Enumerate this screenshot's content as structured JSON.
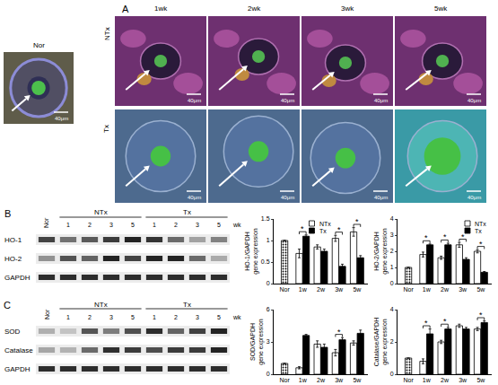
{
  "figure": {
    "panel_a": {
      "label": "A",
      "normal": "Nor",
      "columns": [
        "1wk",
        "2wk",
        "3wk",
        "5wk"
      ],
      "rows": [
        "NTx",
        "Tx"
      ],
      "scale_bar": "40μm"
    },
    "blots": [
      {
        "label": "B",
        "first_lane": "Nor",
        "groups": [
          "NTx",
          "Tx"
        ],
        "lanes": [
          "1",
          "2",
          "3",
          "5"
        ],
        "unit": "wk",
        "rows": [
          "HO-1",
          "HO-2",
          "GAPDH"
        ]
      },
      {
        "label": "C",
        "first_lane": "Nor",
        "groups": [
          "NTx",
          "Tx"
        ],
        "lanes": [
          "1",
          "2",
          "3",
          "5"
        ],
        "unit": "wk",
        "rows": [
          "SOD",
          "Catalase",
          "GAPDH"
        ]
      }
    ]
  },
  "chart_data": [
    {
      "type": "bar",
      "y_label": "HO-1/GAPDH\ngene expression",
      "categories": [
        "Nor",
        "1w",
        "2w",
        "3w",
        "5w"
      ],
      "series": [
        {
          "name": "NTx",
          "color": "#ffffff",
          "values": [
            1.0,
            0.7,
            0.85,
            1.05,
            1.2
          ],
          "errors": [
            null,
            0.1,
            0.05,
            0.07,
            0.1
          ]
        },
        {
          "name": "Tx",
          "color": "#000000",
          "values": [
            null,
            1.1,
            0.75,
            0.4,
            0.6
          ],
          "errors": [
            null,
            0.03,
            0.05,
            0.05,
            0.05
          ]
        }
      ],
      "ylim": [
        0,
        1.5
      ],
      "yticks": [
        0,
        0.5,
        1,
        1.5
      ],
      "grid": false,
      "legend": "upper center",
      "annotations": [
        {
          "text": "*",
          "category": "1w"
        },
        {
          "text": "*",
          "category": "3w"
        },
        {
          "text": "*",
          "category": "5w"
        }
      ]
    },
    {
      "type": "bar",
      "y_label": "HO-2/GAPDH\ngene expression",
      "categories": [
        "Nor",
        "1w",
        "2w",
        "3w",
        "5w"
      ],
      "series": [
        {
          "name": "NTx",
          "color": "#ffffff",
          "values": [
            1.0,
            1.8,
            1.6,
            2.4,
            2.0
          ],
          "errors": [
            null,
            0.15,
            0.1,
            0.15,
            0.1
          ]
        },
        {
          "name": "Tx",
          "color": "#000000",
          "values": [
            null,
            2.4,
            2.4,
            1.5,
            0.7
          ],
          "errors": [
            null,
            0.05,
            0.1,
            0.1,
            0.05
          ]
        }
      ],
      "ylim": [
        0,
        4
      ],
      "yticks": [
        0,
        1,
        2,
        3,
        4
      ],
      "grid": false,
      "legend": "upper right",
      "annotations": [
        {
          "text": "*",
          "category": "1w"
        },
        {
          "text": "*",
          "category": "2w"
        },
        {
          "text": "*",
          "category": "3w"
        },
        {
          "text": "*",
          "category": "5w"
        }
      ]
    },
    {
      "type": "bar",
      "y_label": "SOD/GAPDH\ngene expression",
      "categories": [
        "Nor",
        "1w",
        "2w",
        "3w",
        "5w"
      ],
      "series": [
        {
          "name": "NTx",
          "color": "#ffffff",
          "values": [
            1.0,
            0.6,
            2.8,
            2.0,
            2.9
          ],
          "errors": [
            null,
            0.1,
            0.3,
            0.3,
            0.2
          ]
        },
        {
          "name": "Tx",
          "color": "#000000",
          "values": [
            null,
            3.6,
            2.5,
            3.2,
            3.8
          ],
          "errors": [
            null,
            0.1,
            0.3,
            0.2,
            0.3
          ]
        }
      ],
      "ylim": [
        0,
        6
      ],
      "yticks": [
        0,
        3,
        6
      ],
      "grid": false,
      "annotations": [
        {
          "text": "*",
          "category": "3w"
        }
      ]
    },
    {
      "type": "bar",
      "y_label": "Catalase/GAPDH\ngene expression",
      "categories": [
        "Nor",
        "1w",
        "2w",
        "3w",
        "5w"
      ],
      "series": [
        {
          "name": "NTx",
          "color": "#ffffff",
          "values": [
            1.0,
            0.8,
            2.0,
            3.0,
            2.8
          ],
          "errors": [
            null,
            0.15,
            0.1,
            0.1,
            0.1
          ]
        },
        {
          "name": "Tx",
          "color": "#000000",
          "values": [
            null,
            2.5,
            2.8,
            2.8,
            3.2
          ],
          "errors": [
            null,
            0.3,
            0.1,
            0.1,
            0.1
          ]
        }
      ],
      "ylim": [
        0,
        4
      ],
      "yticks": [
        0,
        2,
        4
      ],
      "grid": false,
      "annotations": [
        {
          "text": "*",
          "category": "1w"
        },
        {
          "text": "*",
          "category": "2w"
        },
        {
          "text": "*",
          "category": "5w"
        }
      ]
    }
  ]
}
